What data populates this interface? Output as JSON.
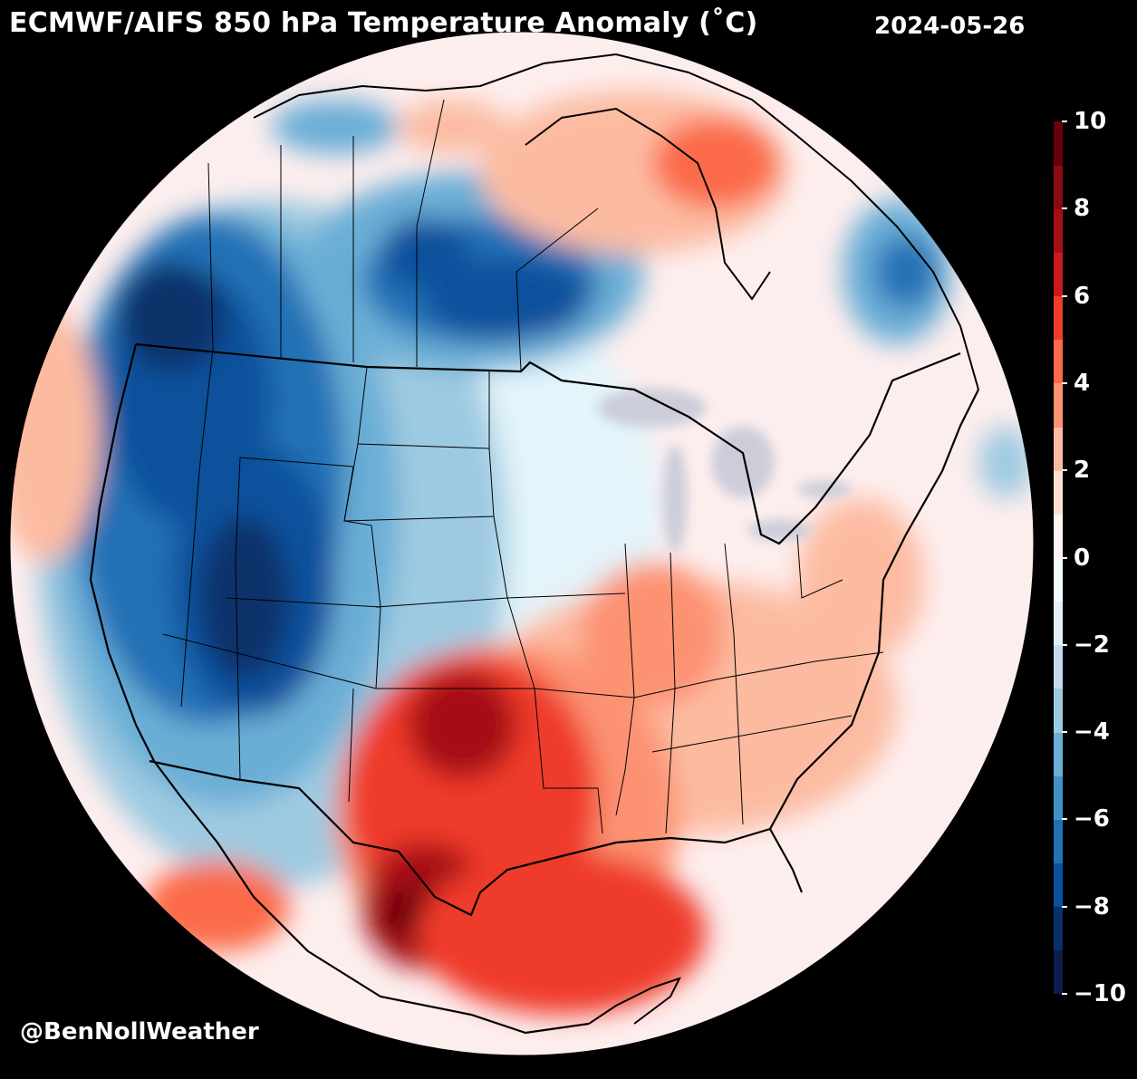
{
  "header": {
    "title": "ECMWF/AIFS 850 hPa Temperature Anomaly (˚C)",
    "date": "2024-05-26"
  },
  "footer": {
    "credit": "@BenNollWeather"
  },
  "colorbar": {
    "min": -10,
    "max": 10,
    "ticks": [
      "10",
      "8",
      "6",
      "4",
      "2",
      "0",
      "−2",
      "−4",
      "−6",
      "−8",
      "−10"
    ],
    "tick_values": [
      10,
      8,
      6,
      4,
      2,
      0,
      -2,
      -4,
      -6,
      -8,
      -10
    ],
    "colors": [
      "#0a1f4e",
      "#08306b",
      "#08519c",
      "#2171b5",
      "#4292c6",
      "#6baed6",
      "#9ecae1",
      "#c6dbef",
      "#e1f1f7",
      "#f7fcff",
      "#fff5f5",
      "#fee0d2",
      "#fcbba1",
      "#fc9272",
      "#fb6a4a",
      "#ef3b2c",
      "#cb181d",
      "#a50f15",
      "#8b0a10",
      "#67000d"
    ]
  },
  "map_regions": [
    {
      "name": "pacific-northwest-cold",
      "anomaly": -8
    },
    {
      "name": "great-basin-cold",
      "anomaly": -9
    },
    {
      "name": "four-corners-cold",
      "anomaly": -7
    },
    {
      "name": "alberta-saskatchewan-cold",
      "anomaly": -7
    },
    {
      "name": "northern-plains-cool",
      "anomaly": -1
    },
    {
      "name": "labrador-cold",
      "anomaly": -6
    },
    {
      "name": "texas-warm",
      "anomaly": 6
    },
    {
      "name": "northeast-mexico-warm",
      "anomaly": 9
    },
    {
      "name": "gulf-of-mexico-warm",
      "anomaly": 5
    },
    {
      "name": "ohio-valley-warm",
      "anomaly": 3
    },
    {
      "name": "southeast-warm",
      "anomaly": 2
    },
    {
      "name": "hudson-bay-warm",
      "anomaly": 3
    },
    {
      "name": "baja-warm",
      "anomaly": 4
    }
  ]
}
